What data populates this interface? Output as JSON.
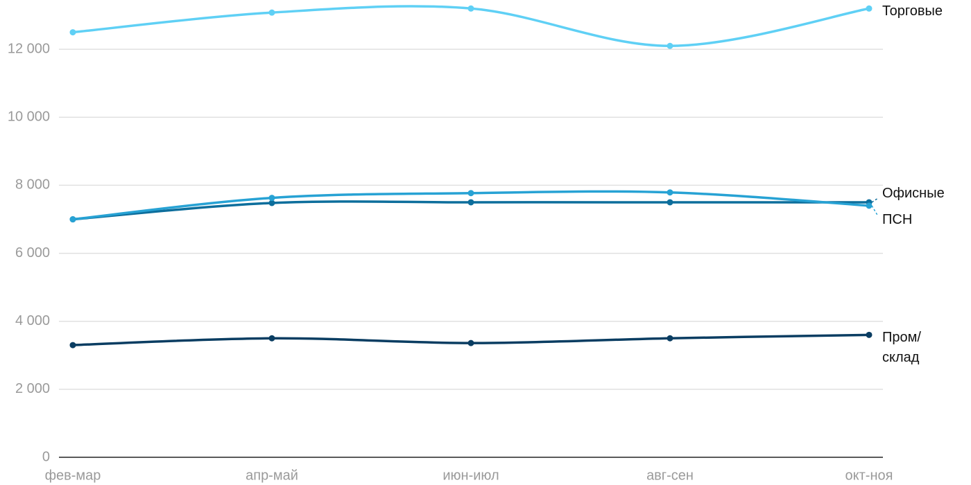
{
  "chart_data": {
    "type": "line",
    "categories": [
      "фев-мар",
      "апр-май",
      "июн-июл",
      "авг-сен",
      "окт-ноя"
    ],
    "ylim": [
      0,
      13450
    ],
    "yticks": [
      0,
      {
        "value": 2000,
        "label": "2 000"
      },
      {
        "value": 4000,
        "label": "4 000"
      },
      {
        "value": 6000,
        "label": "6 000"
      },
      {
        "value": 8000,
        "label": "8 000"
      },
      {
        "value": 10000,
        "label": "10 000"
      },
      {
        "value": 12000,
        "label": "12 000"
      }
    ],
    "grid": true,
    "series": [
      {
        "name": "Торговые",
        "color": "#5fd0f5",
        "values": [
          12500,
          13080,
          13200,
          12100,
          13200
        ]
      },
      {
        "name": "Офисные",
        "color": "#0d6e9c",
        "values": [
          7000,
          7480,
          7500,
          7500,
          7500
        ]
      },
      {
        "name": "ПСН",
        "color": "#27a2d4",
        "values": [
          7000,
          7630,
          7770,
          7790,
          7400
        ]
      },
      {
        "name": "Пром/склад",
        "color": "#0a3d62",
        "values": [
          3300,
          3500,
          3360,
          3500,
          3600
        ]
      }
    ]
  }
}
